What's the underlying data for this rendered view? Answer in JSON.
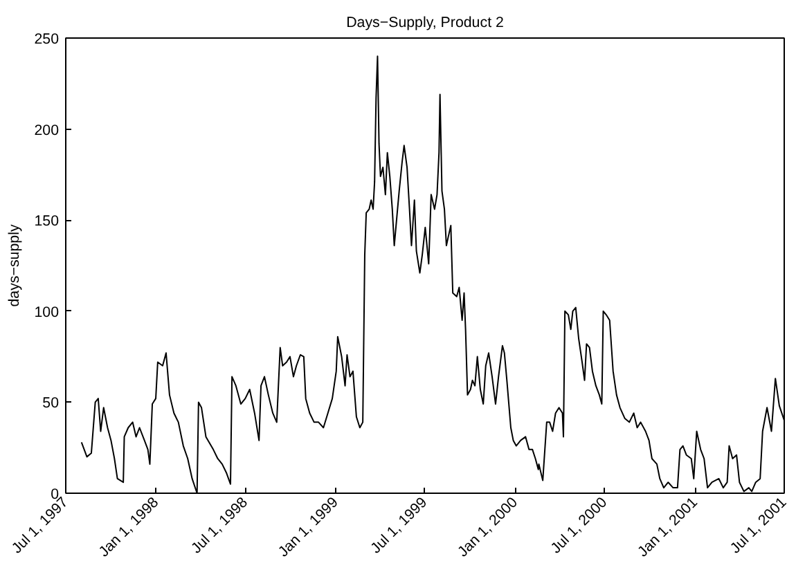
{
  "chart_data": {
    "type": "line",
    "title": "Days−Supply, Product 2",
    "ylabel": "days−supply",
    "xlim": [
      "1997-07-01",
      "2001-07-01"
    ],
    "ylim": [
      0,
      250
    ],
    "xticks": [
      {
        "value": "1997-07-01",
        "label": "Jul 1, 1997"
      },
      {
        "value": "1998-01-01",
        "label": "Jan 1, 1998"
      },
      {
        "value": "1998-07-01",
        "label": "Jul 1, 1998"
      },
      {
        "value": "1999-01-01",
        "label": "Jan 1, 1999"
      },
      {
        "value": "1999-07-01",
        "label": "Jul 1, 1999"
      },
      {
        "value": "2000-01-01",
        "label": "Jan 1, 2000"
      },
      {
        "value": "2000-07-01",
        "label": "Jul 1, 2000"
      },
      {
        "value": "2001-01-01",
        "label": "Jan 1, 2001"
      },
      {
        "value": "2001-07-01",
        "label": "Jul 1, 2001"
      }
    ],
    "yticks": [
      0,
      50,
      100,
      150,
      200,
      250
    ],
    "grid": false,
    "marker": "none",
    "line_style": "solid",
    "series": [
      {
        "color": "#000000",
        "x": [
          "1997-08-02",
          "1997-08-13",
          "1997-08-22",
          "1997-08-30",
          "1997-09-05",
          "1997-09-10",
          "1997-09-16",
          "1997-09-24",
          "1997-10-01",
          "1997-10-08",
          "1997-10-14",
          "1997-10-26",
          "1997-10-28",
          "1997-11-05",
          "1997-11-14",
          "1997-11-21",
          "1997-11-28",
          "1997-12-08",
          "1997-12-15",
          "1997-12-19",
          "1997-12-24",
          "1997-12-31",
          "1998-01-04",
          "1998-01-14",
          "1998-01-21",
          "1998-01-28",
          "1998-02-06",
          "1998-02-15",
          "1998-02-25",
          "1998-03-06",
          "1998-03-15",
          "1998-03-25",
          "1998-03-28",
          "1998-04-03",
          "1998-04-12",
          "1998-04-27",
          "1998-05-06",
          "1998-05-15",
          "1998-05-24",
          "1998-06-01",
          "1998-06-04",
          "1998-06-12",
          "1998-06-22",
          "1998-07-01",
          "1998-07-10",
          "1998-07-20",
          "1998-07-29",
          "1998-08-02",
          "1998-08-09",
          "1998-08-17",
          "1998-08-26",
          "1998-09-03",
          "1998-09-10",
          "1998-09-15",
          "1998-09-23",
          "1998-09-30",
          "1998-10-07",
          "1998-10-13",
          "1998-10-21",
          "1998-10-28",
          "1998-11-01",
          "1998-11-09",
          "1998-11-18",
          "1998-11-27",
          "1998-12-07",
          "1998-12-16",
          "1998-12-25",
          "1999-01-02",
          "1999-01-05",
          "1999-01-13",
          "1999-01-20",
          "1999-01-24",
          "1999-01-30",
          "1999-02-05",
          "1999-02-12",
          "1999-02-19",
          "1999-02-25",
          "1999-03-01",
          "1999-03-04",
          "1999-03-10",
          "1999-03-14",
          "1999-03-18",
          "1999-03-21",
          "1999-03-24",
          "1999-03-27",
          "1999-03-30",
          "1999-04-02",
          "1999-04-07",
          "1999-04-12",
          "1999-04-16",
          "1999-04-21",
          "1999-04-26",
          "1999-04-30",
          "1999-05-05",
          "1999-05-10",
          "1999-05-16",
          "1999-05-20",
          "1999-05-26",
          "1999-05-31",
          "1999-06-04",
          "1999-06-10",
          "1999-06-14",
          "1999-06-21",
          "1999-06-26",
          "1999-07-02",
          "1999-07-09",
          "1999-07-14",
          "1999-07-21",
          "1999-07-26",
          "1999-07-30",
          "1999-08-01",
          "1999-08-05",
          "1999-08-10",
          "1999-08-14",
          "1999-08-18",
          "1999-08-23",
          "1999-08-27",
          "1999-09-04",
          "1999-09-09",
          "1999-09-15",
          "1999-09-19",
          "1999-09-22",
          "1999-09-26",
          "1999-10-02",
          "1999-10-06",
          "1999-10-11",
          "1999-10-16",
          "1999-10-22",
          "1999-10-28",
          "1999-11-02",
          "1999-11-08",
          "1999-11-15",
          "1999-11-22",
          "1999-11-28",
          "1999-12-06",
          "1999-12-10",
          "1999-12-15",
          "1999-12-23",
          "1999-12-28",
          "2000-01-03",
          "2000-01-12",
          "2000-01-22",
          "2000-01-29",
          "2000-02-05",
          "2000-02-11",
          "2000-02-17",
          "2000-02-18",
          "2000-02-26",
          "2000-03-05",
          "2000-03-11",
          "2000-03-17",
          "2000-03-23",
          "2000-03-30",
          "2000-04-06",
          "2000-04-08",
          "2000-04-11",
          "2000-04-18",
          "2000-04-23",
          "2000-04-27",
          "2000-05-03",
          "2000-05-09",
          "2000-05-16",
          "2000-05-21",
          "2000-05-25",
          "2000-05-31",
          "2000-06-06",
          "2000-06-13",
          "2000-06-20",
          "2000-06-25",
          "2000-06-28",
          "2000-07-04",
          "2000-07-11",
          "2000-07-18",
          "2000-07-25",
          "2000-08-01",
          "2000-08-11",
          "2000-08-20",
          "2000-08-29",
          "2000-09-05",
          "2000-09-12",
          "2000-09-22",
          "2000-09-29",
          "2000-10-05",
          "2000-10-15",
          "2000-10-21",
          "2000-10-29",
          "2000-11-07",
          "2000-11-17",
          "2000-11-26",
          "2000-12-01",
          "2000-12-07",
          "2000-12-14",
          "2000-12-24",
          "2000-12-29",
          "2001-01-04",
          "2001-01-12",
          "2001-01-19",
          "2001-01-26",
          "2001-02-04",
          "2001-02-18",
          "2001-02-27",
          "2001-03-07",
          "2001-03-11",
          "2001-03-18",
          "2001-03-26",
          "2001-04-01",
          "2001-04-10",
          "2001-04-20",
          "2001-04-26",
          "2001-05-04",
          "2001-05-13",
          "2001-05-18",
          "2001-05-27",
          "2001-06-05",
          "2001-06-13",
          "2001-06-21",
          "2001-07-01"
        ],
        "values": [
          28,
          20,
          22,
          50,
          52,
          34,
          47,
          36,
          29,
          19,
          8,
          6,
          31,
          36,
          39,
          31,
          36,
          29,
          24,
          16,
          49,
          52,
          72,
          70,
          77,
          54,
          44,
          39,
          26,
          19,
          8,
          0,
          50,
          47,
          31,
          24,
          19,
          16,
          11,
          5,
          64,
          59,
          49,
          52,
          57,
          44,
          29,
          59,
          64,
          54,
          44,
          39,
          80,
          70,
          72,
          75,
          64,
          70,
          76,
          75,
          52,
          44,
          39,
          39,
          36,
          44,
          52,
          67,
          86,
          75,
          59,
          76,
          64,
          67,
          42,
          36,
          39,
          131,
          154,
          156,
          161,
          156,
          171,
          217,
          240,
          192,
          174,
          179,
          164,
          187,
          174,
          156,
          136,
          151,
          166,
          182,
          191,
          179,
          156,
          136,
          161,
          133,
          121,
          131,
          146,
          126,
          164,
          156,
          164,
          187,
          219,
          166,
          156,
          136,
          141,
          147,
          110,
          108,
          113,
          95,
          110,
          90,
          54,
          57,
          62,
          59,
          75,
          57,
          49,
          70,
          77,
          64,
          49,
          64,
          81,
          77,
          62,
          36,
          29,
          26,
          29,
          31,
          24,
          24,
          19,
          13,
          16,
          7,
          39,
          39,
          34,
          44,
          47,
          44,
          31,
          100,
          98,
          90,
          100,
          102,
          85,
          72,
          62,
          82,
          80,
          67,
          59,
          54,
          49,
          100,
          98,
          95,
          67,
          54,
          47,
          41,
          39,
          44,
          36,
          39,
          34,
          29,
          19,
          16,
          8,
          3,
          6,
          3,
          3,
          24,
          26,
          21,
          19,
          8,
          34,
          24,
          19,
          3,
          6,
          8,
          3,
          6,
          26,
          19,
          21,
          6,
          1,
          3,
          1,
          6,
          8,
          34,
          47,
          34,
          63,
          48,
          40
        ]
      }
    ]
  }
}
